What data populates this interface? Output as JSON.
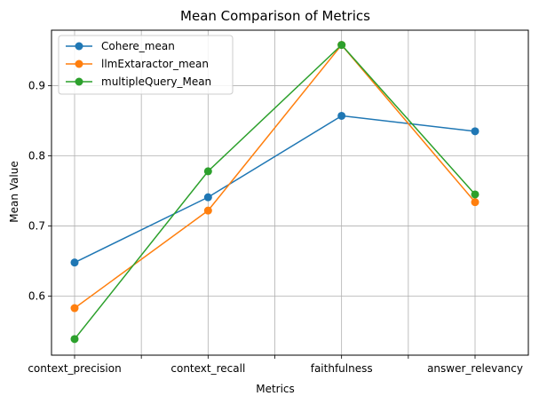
{
  "chart_data": {
    "type": "line",
    "title": "Mean Comparison of Metrics",
    "xlabel": "Metrics",
    "ylabel": "Mean Value",
    "categories": [
      "context_precision",
      "context_recall",
      "faithfulness",
      "answer_relevancy"
    ],
    "ylim": [
      0.516,
      0.979
    ],
    "yticks": [
      0.6,
      0.7,
      0.8,
      0.9
    ],
    "ytick_labels": [
      "0.6",
      "0.7",
      "0.8",
      "0.9"
    ],
    "grid": true,
    "legend_position": "top-left",
    "series": [
      {
        "name": "Cohere_mean",
        "color": "#1f77b4",
        "values": [
          0.648,
          0.741,
          0.857,
          0.835
        ]
      },
      {
        "name": "llmExtaractor_mean",
        "color": "#ff7f0e",
        "values": [
          0.583,
          0.722,
          0.958,
          0.734
        ]
      },
      {
        "name": "multipleQuery_Mean",
        "color": "#2ca02c",
        "values": [
          0.539,
          0.778,
          0.958,
          0.745
        ]
      }
    ]
  }
}
